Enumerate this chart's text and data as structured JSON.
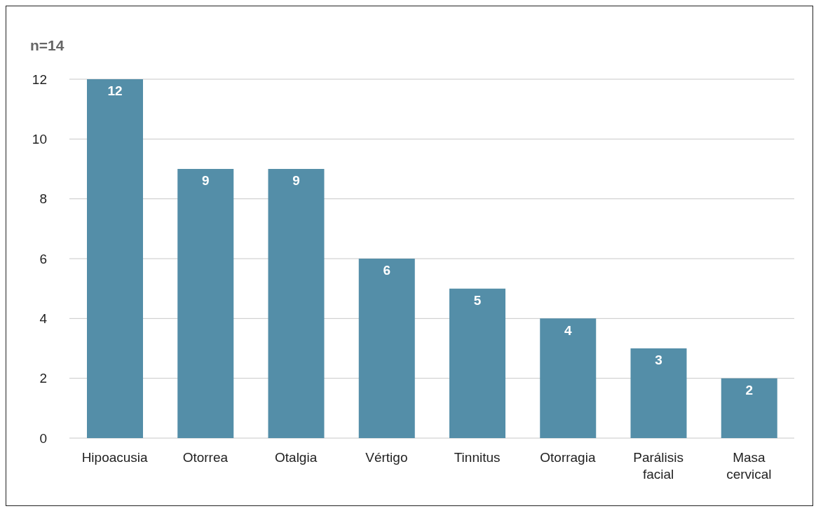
{
  "chart_data": {
    "type": "bar",
    "title": "n=14",
    "categories": [
      "Hipoacusia",
      "Otorrea",
      "Otalgia",
      "Vértigo",
      "Tinnitus",
      "Otorragia",
      "Parálisis facial",
      "Masa cervical"
    ],
    "values": [
      12,
      9,
      9,
      6,
      5,
      4,
      3,
      2
    ],
    "color": "#548ea8",
    "ylim": [
      0,
      12
    ],
    "yticks": [
      0,
      2,
      4,
      6,
      8,
      10,
      12
    ],
    "grid": "y",
    "data_labels": true
  }
}
